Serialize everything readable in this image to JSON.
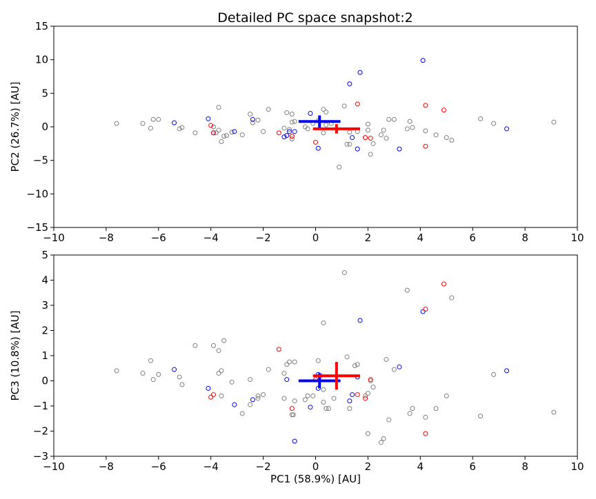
{
  "figure": {
    "title": "Detailed PC space snapshot:2",
    "colors": {
      "background": "#ffffff",
      "grey": "#808080",
      "blue": "#0000ff",
      "red": "#ff0000",
      "axis": "#000000"
    }
  },
  "chart_data": [
    {
      "type": "scatter",
      "title": "Detailed PC space snapshot:2",
      "xlabel": "",
      "ylabel": "PC2 (26.7%) [AU]",
      "xlim": [
        -10,
        10
      ],
      "ylim": [
        -15,
        15
      ],
      "xticks": [
        -10,
        -8,
        -6,
        -4,
        -2,
        0,
        2,
        4,
        6,
        8,
        10
      ],
      "yticks": [
        -15,
        -10,
        -5,
        0,
        5,
        10,
        15
      ],
      "grid": false,
      "series": [
        {
          "color": "grey",
          "marker": "hollow-circle",
          "points": [
            [
              -7.6,
              0.5
            ],
            [
              -6.6,
              0.5
            ],
            [
              -6.3,
              -0.2
            ],
            [
              -6.2,
              1.1
            ],
            [
              -6.0,
              1.1
            ],
            [
              -5.1,
              -0.1
            ],
            [
              -5.2,
              -0.3
            ],
            [
              -4.6,
              -0.9
            ],
            [
              -3.9,
              0.0
            ],
            [
              -3.8,
              -0.9
            ],
            [
              -3.7,
              2.9
            ],
            [
              -3.7,
              -0.5
            ],
            [
              -3.6,
              -2.2
            ],
            [
              -3.5,
              -1.4
            ],
            [
              -3.4,
              -1.3
            ],
            [
              -3.2,
              -0.8
            ],
            [
              -2.8,
              -1.2
            ],
            [
              -2.5,
              1.9
            ],
            [
              -2.4,
              0.6
            ],
            [
              -2.2,
              1.0
            ],
            [
              -2.0,
              -0.7
            ],
            [
              -1.8,
              2.6
            ],
            [
              -1.2,
              -0.2
            ],
            [
              -1.1,
              2.1
            ],
            [
              -1.0,
              -0.4
            ],
            [
              -0.9,
              1.9
            ],
            [
              -0.9,
              -1.8
            ],
            [
              -0.9,
              0.7
            ],
            [
              -0.8,
              0.8
            ],
            [
              -0.4,
              0.0
            ],
            [
              -0.3,
              -0.3
            ],
            [
              -0.1,
              0.5
            ],
            [
              0.1,
              0.9
            ],
            [
              0.3,
              -0.9
            ],
            [
              0.3,
              2.6
            ],
            [
              0.4,
              2.2
            ],
            [
              0.4,
              0.3
            ],
            [
              0.6,
              0.5
            ],
            [
              0.9,
              -6.0
            ],
            [
              1.1,
              3.1
            ],
            [
              1.2,
              -2.6
            ],
            [
              1.3,
              -2.6
            ],
            [
              1.3,
              -0.8
            ],
            [
              1.6,
              -0.7
            ],
            [
              1.9,
              -1.6
            ],
            [
              2.0,
              0.4
            ],
            [
              2.0,
              -0.5
            ],
            [
              2.1,
              -4.1
            ],
            [
              2.2,
              -2.5
            ],
            [
              2.5,
              -1.2
            ],
            [
              2.6,
              -0.5
            ],
            [
              2.7,
              -1.7
            ],
            [
              2.8,
              1.1
            ],
            [
              3.0,
              1.1
            ],
            [
              3.5,
              -0.3
            ],
            [
              3.6,
              0.8
            ],
            [
              3.7,
              -0.1
            ],
            [
              4.2,
              -0.6
            ],
            [
              4.6,
              -1.2
            ],
            [
              5.0,
              -1.6
            ],
            [
              5.2,
              -2.0
            ],
            [
              6.3,
              1.2
            ],
            [
              6.8,
              0.5
            ],
            [
              9.1,
              0.7
            ]
          ]
        },
        {
          "color": "blue",
          "marker": "hollow-circle",
          "points": [
            [
              -5.4,
              0.6
            ],
            [
              -4.1,
              1.2
            ],
            [
              -3.9,
              -0.9
            ],
            [
              -3.1,
              -0.7
            ],
            [
              -2.4,
              1.1
            ],
            [
              -1.2,
              -1.5
            ],
            [
              -1.1,
              -1.3
            ],
            [
              -1.0,
              -0.7
            ],
            [
              -0.8,
              -0.7
            ],
            [
              -0.2,
              2.0
            ],
            [
              0.1,
              -3.2
            ],
            [
              1.3,
              6.4
            ],
            [
              1.4,
              -1.6
            ],
            [
              1.6,
              -3.3
            ],
            [
              1.7,
              8.1
            ],
            [
              3.2,
              -3.3
            ],
            [
              4.1,
              9.9
            ],
            [
              7.3,
              -0.3
            ]
          ]
        },
        {
          "color": "red",
          "marker": "hollow-circle",
          "points": [
            [
              -4.0,
              0.2
            ],
            [
              -3.9,
              -0.9
            ],
            [
              -1.4,
              -0.9
            ],
            [
              -0.9,
              -1.4
            ],
            [
              0.0,
              -2.3
            ],
            [
              1.6,
              3.4
            ],
            [
              1.9,
              -1.6
            ],
            [
              2.1,
              -1.7
            ],
            [
              4.2,
              3.2
            ],
            [
              4.2,
              -2.9
            ],
            [
              4.9,
              2.5
            ]
          ]
        }
      ],
      "centroids": [
        {
          "color": "blue",
          "x": 0.15,
          "y": 0.8,
          "xerr": 0.8,
          "yerr": 0.9
        },
        {
          "color": "red",
          "x": 0.8,
          "y": -0.3,
          "xerr": 0.9,
          "yerr": 0.7
        }
      ]
    },
    {
      "type": "scatter",
      "title": "",
      "xlabel": "PC1 (58.9%) [AU]",
      "ylabel": "PC3 (10.8%) [AU]",
      "xlim": [
        -10,
        10
      ],
      "ylim": [
        -3,
        5
      ],
      "xticks": [
        -10,
        -8,
        -6,
        -4,
        -2,
        0,
        2,
        4,
        6,
        8,
        10
      ],
      "yticks": [
        -3,
        -2,
        -1,
        0,
        1,
        2,
        3,
        4,
        5
      ],
      "grid": false,
      "series": [
        {
          "color": "grey",
          "marker": "hollow-circle",
          "points": [
            [
              -7.6,
              0.4
            ],
            [
              -6.6,
              0.3
            ],
            [
              -6.3,
              0.8
            ],
            [
              -6.2,
              0.05
            ],
            [
              -6.0,
              0.25
            ],
            [
              -5.2,
              0.15
            ],
            [
              -5.1,
              -0.15
            ],
            [
              -4.6,
              1.4
            ],
            [
              -3.9,
              1.4
            ],
            [
              -3.7,
              1.2
            ],
            [
              -3.7,
              0.3
            ],
            [
              -3.6,
              0.4
            ],
            [
              -3.6,
              -0.6
            ],
            [
              -3.5,
              1.6
            ],
            [
              -3.2,
              -0.05
            ],
            [
              -2.8,
              -1.3
            ],
            [
              -2.5,
              -0.95
            ],
            [
              -2.5,
              0.05
            ],
            [
              -2.2,
              -0.7
            ],
            [
              -2.2,
              -0.6
            ],
            [
              -2.0,
              -0.55
            ],
            [
              -1.8,
              0.45
            ],
            [
              -1.2,
              -0.7
            ],
            [
              -1.2,
              0.3
            ],
            [
              -1.1,
              0.65
            ],
            [
              -1.0,
              0.75
            ],
            [
              -0.9,
              -1.35
            ],
            [
              -0.85,
              -1.35
            ],
            [
              -0.8,
              0.75
            ],
            [
              -0.8,
              -0.8
            ],
            [
              -0.4,
              -0.75
            ],
            [
              -0.3,
              -0.6
            ],
            [
              -0.1,
              -0.6
            ],
            [
              0.1,
              0.8
            ],
            [
              0.2,
              0.2
            ],
            [
              0.3,
              -0.35
            ],
            [
              0.3,
              2.3
            ],
            [
              0.3,
              -0.85
            ],
            [
              0.4,
              -1.1
            ],
            [
              0.5,
              -1.1
            ],
            [
              0.7,
              -0.7
            ],
            [
              1.1,
              4.3
            ],
            [
              1.2,
              0.95
            ],
            [
              1.3,
              -1.1
            ],
            [
              1.5,
              0.6
            ],
            [
              1.6,
              0.65
            ],
            [
              1.9,
              -0.6
            ],
            [
              2.0,
              -0.5
            ],
            [
              2.0,
              -2.1
            ],
            [
              2.1,
              0.0
            ],
            [
              2.2,
              -0.25
            ],
            [
              2.5,
              -2.45
            ],
            [
              2.6,
              -2.3
            ],
            [
              2.7,
              0.85
            ],
            [
              2.8,
              -1.55
            ],
            [
              3.0,
              0.45
            ],
            [
              3.5,
              3.6
            ],
            [
              3.6,
              -1.3
            ],
            [
              3.7,
              -1.1
            ],
            [
              4.2,
              -1.45
            ],
            [
              4.6,
              -1.1
            ],
            [
              5.0,
              -0.6
            ],
            [
              5.2,
              3.3
            ],
            [
              6.3,
              -1.4
            ],
            [
              6.8,
              0.25
            ],
            [
              9.1,
              -1.25
            ]
          ]
        },
        {
          "color": "blue",
          "marker": "hollow-circle",
          "points": [
            [
              -5.4,
              0.45
            ],
            [
              -4.1,
              -0.3
            ],
            [
              -3.1,
              -0.95
            ],
            [
              -2.4,
              -0.75
            ],
            [
              -1.1,
              0.05
            ],
            [
              -0.8,
              -2.4
            ],
            [
              -0.2,
              -1.05
            ],
            [
              0.1,
              -0.3
            ],
            [
              0.1,
              0.25
            ],
            [
              1.3,
              -0.8
            ],
            [
              1.4,
              -0.55
            ],
            [
              1.6,
              0.15
            ],
            [
              1.7,
              2.4
            ],
            [
              3.2,
              0.55
            ],
            [
              4.1,
              2.75
            ],
            [
              7.3,
              0.4
            ]
          ]
        },
        {
          "color": "red",
          "marker": "hollow-circle",
          "points": [
            [
              -4.0,
              -0.65
            ],
            [
              -3.9,
              -0.55
            ],
            [
              -1.4,
              1.25
            ],
            [
              -0.9,
              -1.1
            ],
            [
              0.0,
              0.05
            ],
            [
              1.6,
              -0.55
            ],
            [
              1.9,
              -0.7
            ],
            [
              2.1,
              0.05
            ],
            [
              4.2,
              2.85
            ],
            [
              4.2,
              -2.1
            ],
            [
              4.9,
              3.85
            ]
          ]
        }
      ],
      "centroids": [
        {
          "color": "blue",
          "x": 0.15,
          "y": 0.0,
          "xerr": 0.8,
          "yerr": 0.3
        },
        {
          "color": "red",
          "x": 0.8,
          "y": 0.2,
          "xerr": 0.9,
          "yerr": 0.55
        }
      ]
    }
  ]
}
